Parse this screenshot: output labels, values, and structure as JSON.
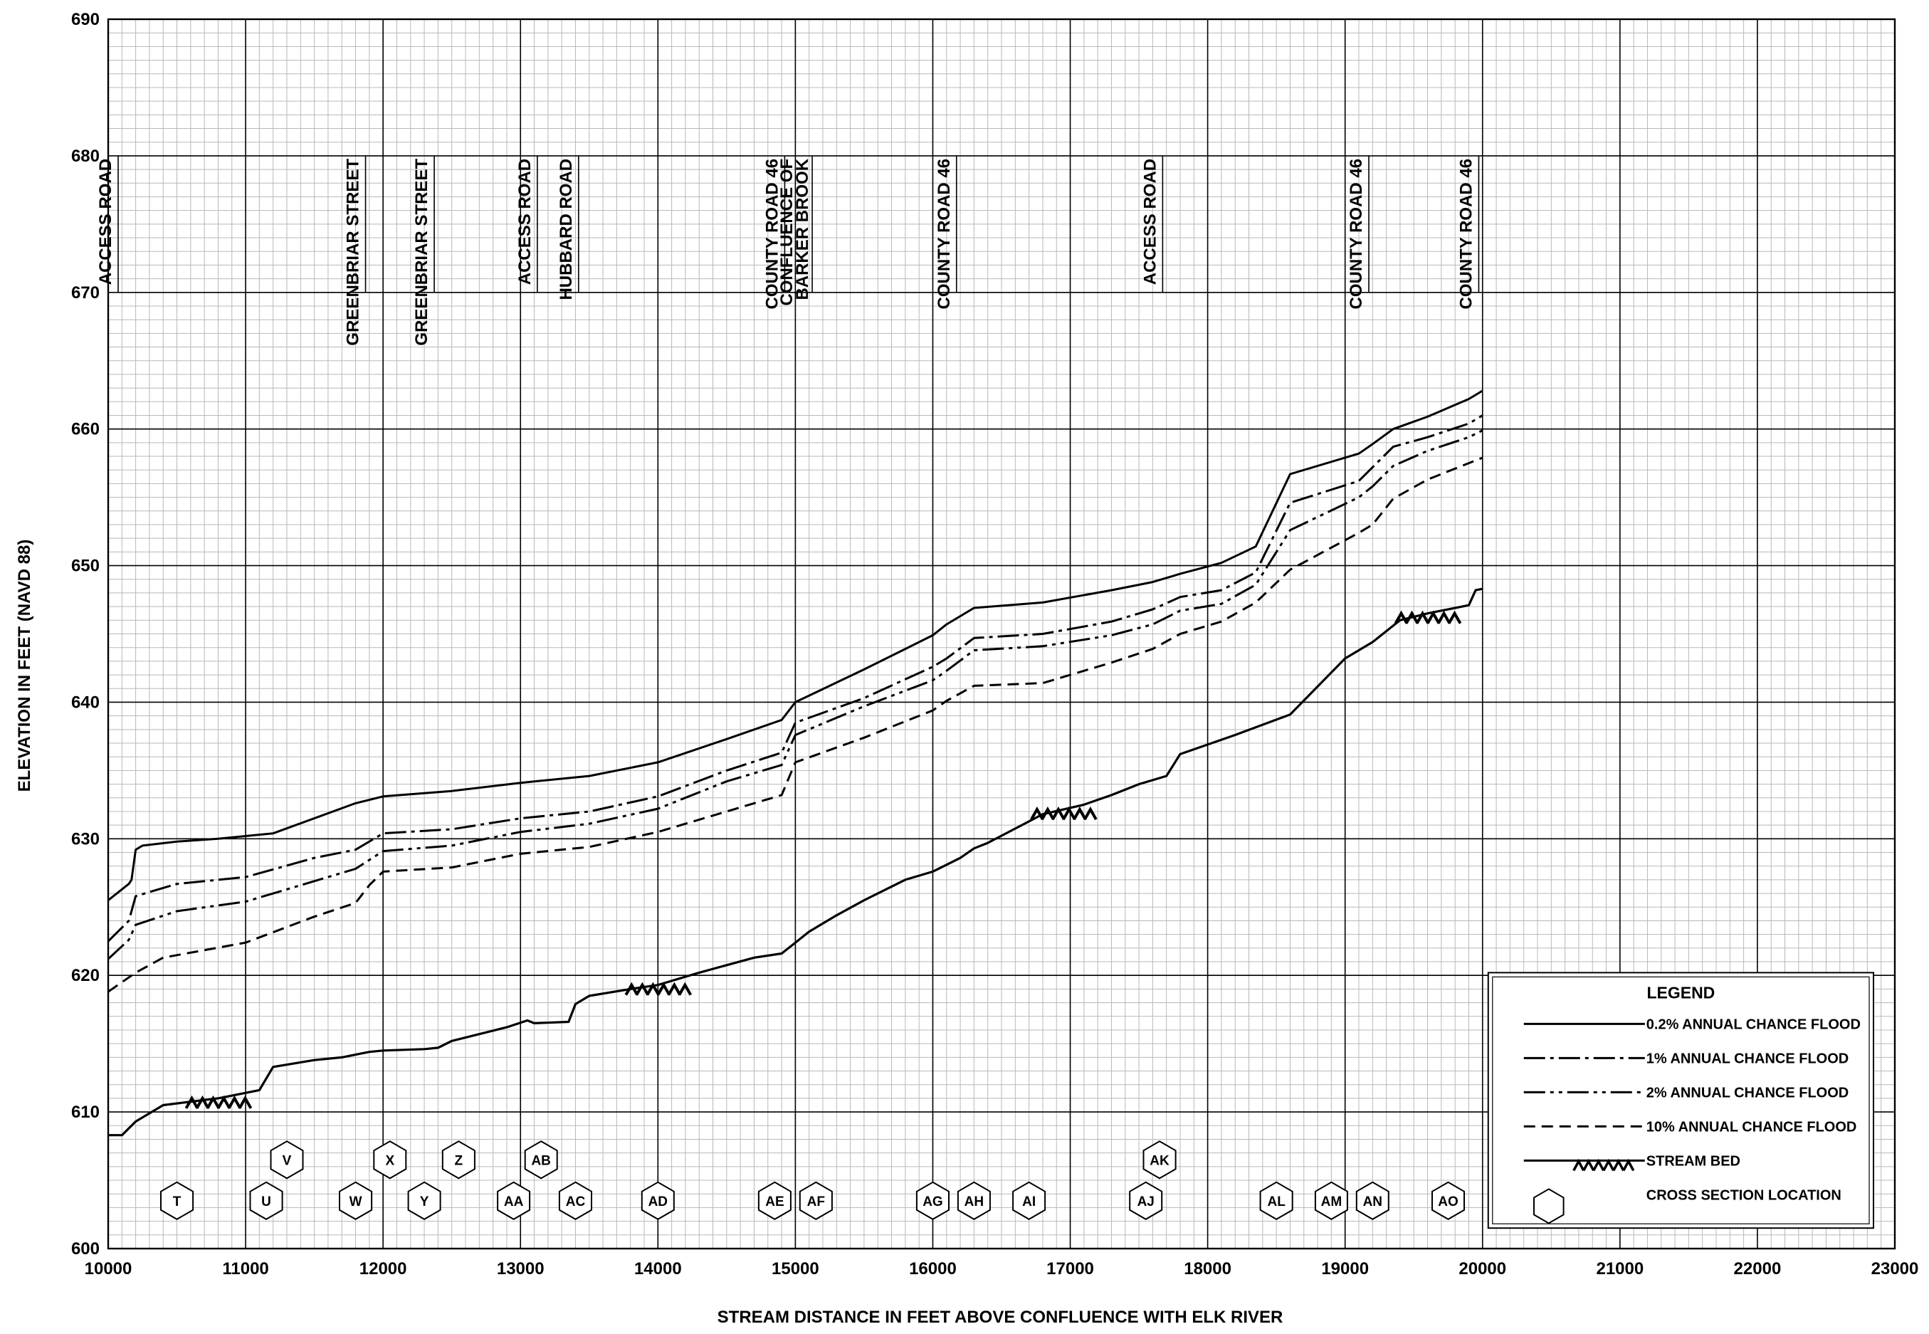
{
  "chart_data": {
    "type": "line",
    "title": "",
    "xlabel": "STREAM DISTANCE IN FEET ABOVE CONFLUENCE WITH ELK RIVER",
    "ylabel": "ELEVATION IN FEET (NAVD 88)",
    "xlim": [
      10000,
      23000
    ],
    "ylim": [
      600,
      690
    ],
    "x_ticks": [
      10000,
      11000,
      12000,
      13000,
      14000,
      15000,
      16000,
      17000,
      18000,
      19000,
      20000,
      21000,
      22000,
      23000
    ],
    "y_ticks": [
      600,
      610,
      620,
      630,
      640,
      650,
      660,
      670,
      680,
      690
    ],
    "grid": true,
    "legend_position": "bottom-right",
    "legend_title": "LEGEND",
    "series": [
      {
        "name": "0.2% ANNUAL CHANCE FLOOD",
        "style": "solid",
        "x": [
          10000,
          10150,
          10170,
          10200,
          10250,
          10500,
          10800,
          11200,
          11800,
          12000,
          12500,
          13000,
          13500,
          14000,
          14500,
          14900,
          15000,
          15500,
          16000,
          16100,
          16300,
          16800,
          17300,
          17600,
          17800,
          18100,
          18350,
          18600,
          19100,
          19200,
          19350,
          19600,
          19900,
          20000
        ],
        "y": [
          625.5,
          626.7,
          627.0,
          629.2,
          629.5,
          629.8,
          630.0,
          630.4,
          632.6,
          633.1,
          633.5,
          634.1,
          634.6,
          635.6,
          637.3,
          638.7,
          640.0,
          642.4,
          644.9,
          645.7,
          646.9,
          647.3,
          648.2,
          648.8,
          649.4,
          650.2,
          651.4,
          656.7,
          658.2,
          658.9,
          660.0,
          660.9,
          662.2,
          662.8
        ]
      },
      {
        "name": "1% ANNUAL CHANCE FLOOD",
        "style": "dash-dot",
        "x": [
          10000,
          10150,
          10200,
          10500,
          11000,
          11500,
          11800,
          12000,
          12500,
          13000,
          13500,
          14000,
          14500,
          14900,
          15000,
          15500,
          16000,
          16100,
          16300,
          16800,
          17300,
          17600,
          17800,
          18100,
          18350,
          18600,
          19100,
          19200,
          19350,
          19600,
          19900,
          20000
        ],
        "y": [
          622.5,
          624.0,
          625.8,
          626.7,
          627.2,
          628.6,
          629.2,
          630.4,
          630.7,
          631.5,
          632.0,
          633.1,
          635.0,
          636.3,
          638.5,
          640.3,
          642.6,
          643.2,
          644.7,
          645.0,
          645.9,
          646.8,
          647.7,
          648.2,
          649.5,
          654.6,
          656.2,
          657.2,
          658.7,
          659.4,
          660.4,
          661.0
        ]
      },
      {
        "name": "2% ANNUAL CHANCE FLOOD",
        "style": "dash-dot-dot",
        "x": [
          10000,
          10150,
          10200,
          10500,
          11000,
          11500,
          11800,
          12000,
          12500,
          13000,
          13500,
          14000,
          14500,
          14900,
          15000,
          15500,
          16000,
          16100,
          16300,
          16800,
          17300,
          17600,
          17800,
          18100,
          18350,
          18600,
          19100,
          19200,
          19350,
          19600,
          19900,
          20000
        ],
        "y": [
          621.2,
          622.6,
          623.7,
          624.7,
          625.4,
          626.9,
          627.8,
          629.1,
          629.5,
          630.5,
          631.1,
          632.2,
          634.2,
          635.4,
          637.6,
          639.7,
          641.6,
          642.3,
          643.8,
          644.1,
          644.9,
          645.7,
          646.7,
          647.2,
          648.6,
          652.6,
          655.0,
          655.8,
          657.3,
          658.4,
          659.4,
          659.9
        ]
      },
      {
        "name": "10% ANNUAL CHANCE FLOOD",
        "style": "dashed",
        "x": [
          10000,
          10200,
          10400,
          11000,
          11500,
          11800,
          11900,
          12000,
          12500,
          13000,
          13500,
          14000,
          14500,
          14900,
          15000,
          15500,
          16000,
          16100,
          16300,
          16800,
          17300,
          17600,
          17800,
          18100,
          18350,
          18600,
          19100,
          19200,
          19350,
          19600,
          19900,
          20000
        ],
        "y": [
          618.8,
          620.2,
          621.3,
          622.4,
          624.3,
          625.3,
          626.6,
          627.6,
          627.9,
          628.9,
          629.4,
          630.5,
          632.0,
          633.2,
          635.6,
          637.4,
          639.4,
          640.1,
          641.2,
          641.4,
          642.9,
          643.9,
          645.0,
          645.9,
          647.3,
          649.7,
          652.4,
          653.0,
          654.9,
          656.3,
          657.5,
          657.9
        ]
      },
      {
        "name": "STREAM BED",
        "style": "solid",
        "x": [
          10000,
          10100,
          10200,
          10400,
          10800,
          11100,
          11200,
          11500,
          11700,
          11900,
          12000,
          12300,
          12400,
          12500,
          12900,
          13050,
          13100,
          13350,
          13400,
          13500,
          13800,
          14000,
          14300,
          14700,
          14900,
          15000,
          15100,
          15300,
          15500,
          15800,
          16000,
          16200,
          16300,
          16400,
          16800,
          17100,
          17300,
          17500,
          17700,
          17800,
          18200,
          18600,
          19000,
          19200,
          19400,
          19600,
          19900,
          19950,
          20000
        ],
        "y": [
          608.3,
          608.3,
          609.3,
          610.5,
          611.0,
          611.6,
          613.3,
          613.8,
          614.0,
          614.4,
          614.5,
          614.6,
          614.7,
          615.2,
          616.2,
          616.7,
          616.5,
          616.6,
          617.9,
          618.5,
          619.0,
          619.3,
          620.2,
          621.3,
          621.6,
          622.4,
          623.2,
          624.4,
          625.5,
          627.0,
          627.6,
          628.6,
          629.3,
          629.7,
          631.8,
          632.5,
          633.2,
          634.0,
          634.6,
          636.2,
          637.6,
          639.1,
          643.2,
          644.4,
          646.0,
          646.5,
          647.1,
          648.2,
          648.3
        ]
      }
    ],
    "road_labels": [
      {
        "text": "ACCESS ROAD",
        "x": 10000
      },
      {
        "text": "GREENBRIAR STREET",
        "x": 11800
      },
      {
        "text": "GREENBRIAR STREET",
        "x": 12300
      },
      {
        "text": "ACCESS ROAD",
        "x": 13050
      },
      {
        "text": "HUBBARD ROAD",
        "x": 13350
      },
      {
        "text": "COUNTY ROAD 46",
        "x": 14850
      },
      {
        "text": "CONFLUENCE OF\nBARKER BROOK",
        "x": 15050
      },
      {
        "text": "COUNTY ROAD 46",
        "x": 16100
      },
      {
        "text": "ACCESS ROAD",
        "x": 17600
      },
      {
        "text": "COUNTY ROAD 46",
        "x": 19100
      },
      {
        "text": "COUNTY ROAD 46",
        "x": 19900
      }
    ],
    "cross_sections": [
      {
        "label": "T",
        "x": 10500,
        "row": "low"
      },
      {
        "label": "U",
        "x": 11150,
        "row": "low"
      },
      {
        "label": "V",
        "x": 11300,
        "row": "high"
      },
      {
        "label": "W",
        "x": 11800,
        "row": "low"
      },
      {
        "label": "X",
        "x": 12050,
        "row": "high"
      },
      {
        "label": "Y",
        "x": 12300,
        "row": "low"
      },
      {
        "label": "Z",
        "x": 12550,
        "row": "high"
      },
      {
        "label": "AA",
        "x": 12950,
        "row": "low"
      },
      {
        "label": "AB",
        "x": 13150,
        "row": "high"
      },
      {
        "label": "AC",
        "x": 13400,
        "row": "low"
      },
      {
        "label": "AD",
        "x": 14000,
        "row": "low"
      },
      {
        "label": "AE",
        "x": 14850,
        "row": "low"
      },
      {
        "label": "AF",
        "x": 15150,
        "row": "low"
      },
      {
        "label": "AG",
        "x": 16000,
        "row": "low"
      },
      {
        "label": "AH",
        "x": 16300,
        "row": "low"
      },
      {
        "label": "AI",
        "x": 16700,
        "row": "low"
      },
      {
        "label": "AJ",
        "x": 17550,
        "row": "low"
      },
      {
        "label": "AK",
        "x": 17650,
        "row": "high"
      },
      {
        "label": "AL",
        "x": 18500,
        "row": "low"
      },
      {
        "label": "AM",
        "x": 18900,
        "row": "low"
      },
      {
        "label": "AN",
        "x": 19200,
        "row": "low"
      },
      {
        "label": "AO",
        "x": 19750,
        "row": "low"
      }
    ],
    "legend_items": [
      {
        "label": "0.2% ANNUAL CHANCE FLOOD",
        "style": "solid"
      },
      {
        "label": "1% ANNUAL CHANCE FLOOD",
        "style": "dash-dot"
      },
      {
        "label": "2% ANNUAL CHANCE FLOOD",
        "style": "dash-dot-dot"
      },
      {
        "label": "10% ANNUAL CHANCE FLOOD",
        "style": "dashed"
      },
      {
        "label": "STREAM BED",
        "style": "streambed"
      },
      {
        "label": "CROSS SECTION LOCATION",
        "style": "hexagon"
      }
    ],
    "colors": {
      "line": "#000000",
      "background": "#ffffff",
      "grid": "#000000"
    }
  }
}
